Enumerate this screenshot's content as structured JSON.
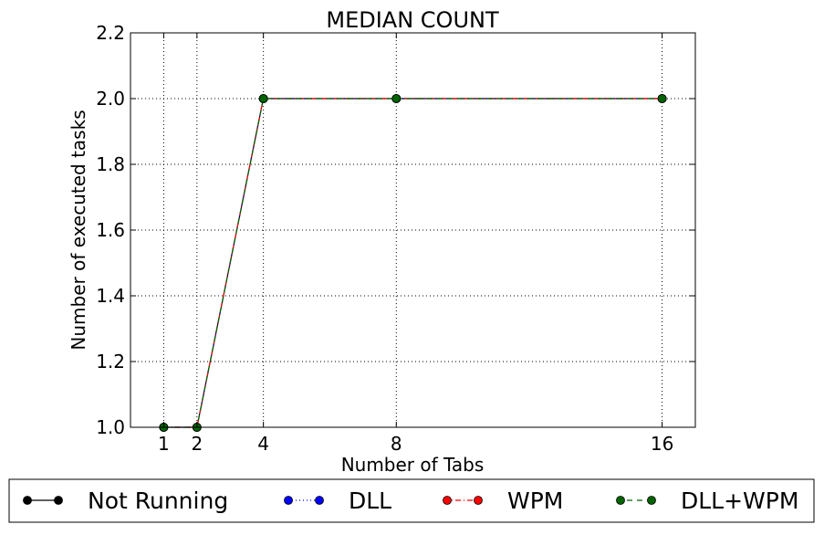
{
  "chart_data": {
    "type": "line",
    "title": "MEDIAN COUNT",
    "xlabel": "Number of Tabs",
    "ylabel": "Number of executed tasks",
    "x": [
      1,
      2,
      4,
      8,
      16
    ],
    "xlim": [
      0,
      17
    ],
    "ylim": [
      1.0,
      2.2
    ],
    "xticks": [
      1,
      2,
      4,
      8,
      16
    ],
    "xtick_labels": [
      "1",
      "2",
      "4",
      "8",
      "16"
    ],
    "yticks": [
      1.0,
      1.2,
      1.4,
      1.6,
      1.8,
      2.0,
      2.2
    ],
    "ytick_labels": [
      "1.0",
      "1.2",
      "1.4",
      "1.6",
      "1.8",
      "2.0",
      "2.2"
    ],
    "grid": true,
    "legend_position": "bottom-outside",
    "series": [
      {
        "name": "Not Running",
        "values": [
          1.0,
          1.0,
          2.0,
          2.0,
          2.0
        ],
        "color": "#000000",
        "linestyle": "solid"
      },
      {
        "name": "DLL",
        "values": [
          1.0,
          1.0,
          2.0,
          2.0,
          2.0
        ],
        "color": "#0000ff",
        "linestyle": "dotted"
      },
      {
        "name": "WPM",
        "values": [
          1.0,
          1.0,
          2.0,
          2.0,
          2.0
        ],
        "color": "#ff0000",
        "linestyle": "dashdot"
      },
      {
        "name": "DLL+WPM",
        "values": [
          1.0,
          1.0,
          2.0,
          2.0,
          2.0
        ],
        "color": "#006400",
        "linestyle": "dashed"
      }
    ]
  }
}
